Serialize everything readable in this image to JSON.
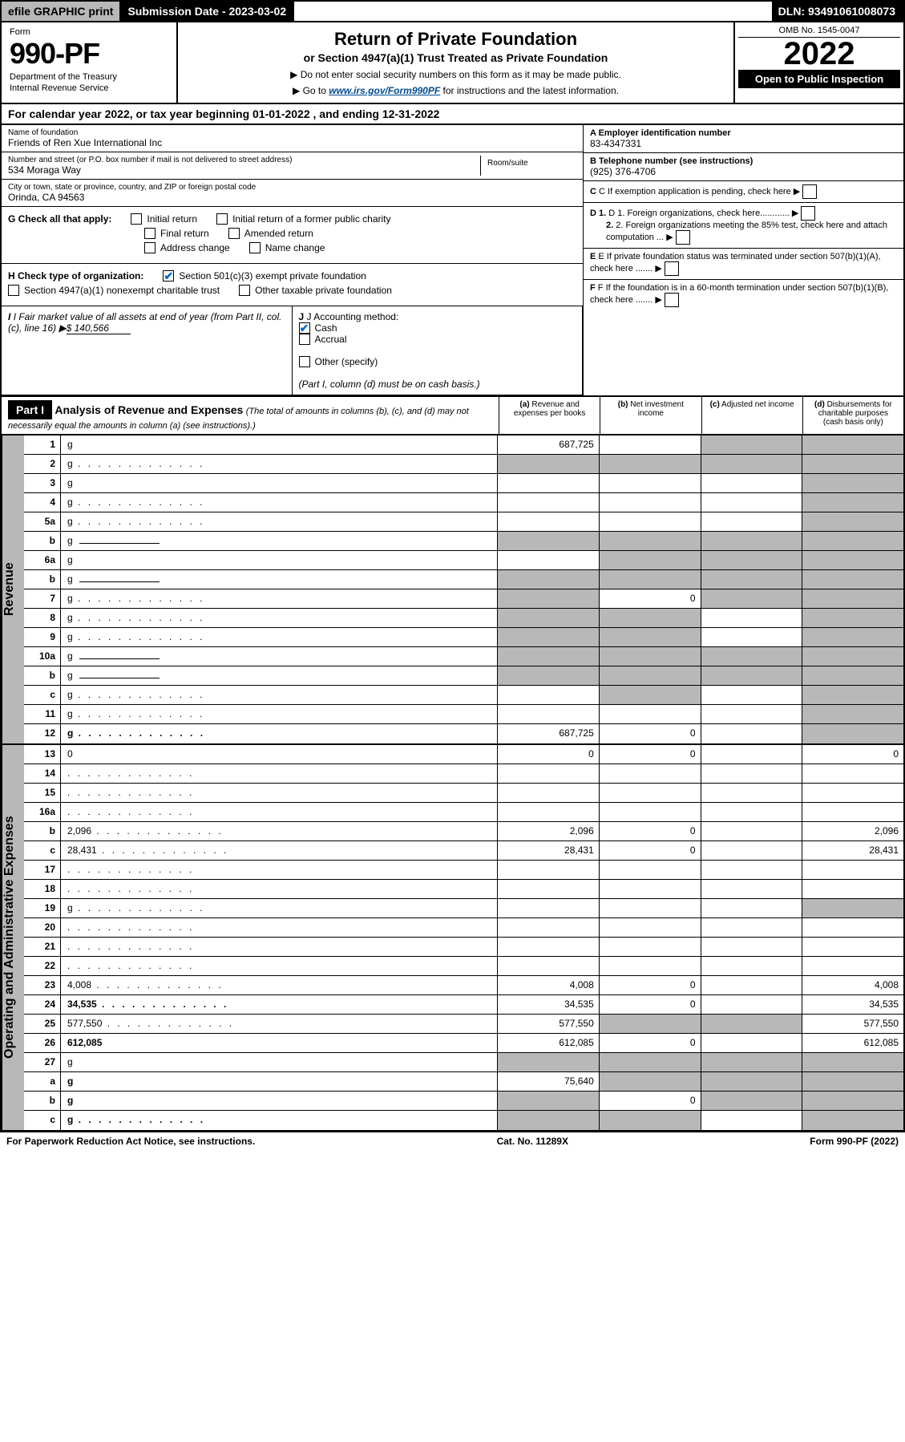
{
  "top": {
    "efile": "efile GRAPHIC print",
    "sub_label": "Submission Date - 2023-03-02",
    "dln": "DLN: 93491061008073"
  },
  "header": {
    "form_label": "Form",
    "form_number": "990-PF",
    "dept1": "Department of the Treasury",
    "dept2": "Internal Revenue Service",
    "title": "Return of Private Foundation",
    "subtitle": "or Section 4947(a)(1) Trust Treated as Private Foundation",
    "instr1": "▶ Do not enter social security numbers on this form as it may be made public.",
    "instr2_pre": "▶ Go to ",
    "instr2_link": "www.irs.gov/Form990PF",
    "instr2_post": " for instructions and the latest information.",
    "omb": "OMB No. 1545-0047",
    "year": "2022",
    "open": "Open to Public Inspection"
  },
  "cal_year": "For calendar year 2022, or tax year beginning 01-01-2022             , and ending 12-31-2022",
  "name": {
    "label": "Name of foundation",
    "value": "Friends of Ren Xue International Inc"
  },
  "addr": {
    "label": "Number and street (or P.O. box number if mail is not delivered to street address)",
    "value": "534 Moraga Way",
    "room_label": "Room/suite"
  },
  "city": {
    "label": "City or town, state or province, country, and ZIP or foreign postal code",
    "value": "Orinda, CA  94563"
  },
  "ein": {
    "label": "A Employer identification number",
    "value": "83-4347331"
  },
  "phone": {
    "label": "B Telephone number (see instructions)",
    "value": "(925) 376-4706"
  },
  "c": "C If exemption application is pending, check here",
  "d1": "D 1. Foreign organizations, check here............",
  "d2": "2. Foreign organizations meeting the 85% test, check here and attach computation ...",
  "e": "E  If private foundation status was terminated under section 507(b)(1)(A), check here .......",
  "f": "F  If the foundation is in a 60-month termination under section 507(b)(1)(B), check here .......",
  "g": {
    "label": "G Check all that apply:",
    "opts": [
      "Initial return",
      "Initial return of a former public charity",
      "Final return",
      "Amended return",
      "Address change",
      "Name change"
    ]
  },
  "h": {
    "label": "H Check type of organization:",
    "opt1": "Section 501(c)(3) exempt private foundation",
    "opt2": "Section 4947(a)(1) nonexempt charitable trust",
    "opt3": "Other taxable private foundation"
  },
  "i": {
    "label": "I Fair market value of all assets at end of year (from Part II, col. (c), line 16)",
    "value": "$  140,566"
  },
  "j": {
    "label": "J Accounting method:",
    "cash": "Cash",
    "accrual": "Accrual",
    "other": "Other (specify)",
    "note": "(Part I, column (d) must be on cash basis.)"
  },
  "part1": {
    "label": "Part I",
    "title": "Analysis of Revenue and Expenses",
    "note": "(The total of amounts in columns (b), (c), and (d) may not necessarily equal the amounts in column (a) (see instructions).)",
    "col_a": "(a)",
    "col_a_txt": "Revenue and expenses per books",
    "col_b": "(b)",
    "col_b_txt": "Net investment income",
    "col_c": "(c)",
    "col_c_txt": "Adjusted net income",
    "col_d": "(d)",
    "col_d_txt": "Disbursements for charitable purposes (cash basis only)"
  },
  "rev_label": "Revenue",
  "exp_label": "Operating and Administrative Expenses",
  "rows": [
    {
      "n": "1",
      "d": "g",
      "a": "687,725",
      "b": "",
      "c": "g"
    },
    {
      "n": "2",
      "d": "g",
      "a": "g",
      "b": "g",
      "c": "g",
      "dots": true
    },
    {
      "n": "3",
      "d": "g",
      "a": "",
      "b": "",
      "c": ""
    },
    {
      "n": "4",
      "d": "g",
      "a": "",
      "b": "",
      "c": "",
      "dots": true
    },
    {
      "n": "5a",
      "d": "g",
      "a": "",
      "b": "",
      "c": "",
      "dots": true
    },
    {
      "n": "b",
      "d": "g",
      "a": "g",
      "b": "g",
      "c": "g",
      "sub": true
    },
    {
      "n": "6a",
      "d": "g",
      "a": "",
      "b": "g",
      "c": "g"
    },
    {
      "n": "b",
      "d": "g",
      "a": "g",
      "b": "g",
      "c": "g",
      "sub": true
    },
    {
      "n": "7",
      "d": "g",
      "a": "g",
      "b": "0",
      "c": "g",
      "dots": true
    },
    {
      "n": "8",
      "d": "g",
      "a": "g",
      "b": "g",
      "c": "",
      "dots": true
    },
    {
      "n": "9",
      "d": "g",
      "a": "g",
      "b": "g",
      "c": "",
      "dots": true
    },
    {
      "n": "10a",
      "d": "g",
      "a": "g",
      "b": "g",
      "c": "g",
      "sub": true
    },
    {
      "n": "b",
      "d": "g",
      "a": "g",
      "b": "g",
      "c": "g",
      "sub": true,
      "dots": true
    },
    {
      "n": "c",
      "d": "g",
      "a": "",
      "b": "g",
      "c": "",
      "dots": true
    },
    {
      "n": "11",
      "d": "g",
      "a": "",
      "b": "",
      "c": "",
      "dots": true
    },
    {
      "n": "12",
      "d": "g",
      "a": "687,725",
      "b": "0",
      "c": "",
      "bold": true,
      "dots": true
    }
  ],
  "exp_rows": [
    {
      "n": "13",
      "d": "0",
      "a": "0",
      "b": "0",
      "c": ""
    },
    {
      "n": "14",
      "d": "",
      "a": "",
      "b": "",
      "c": "",
      "dots": true
    },
    {
      "n": "15",
      "d": "",
      "a": "",
      "b": "",
      "c": "",
      "dots": true
    },
    {
      "n": "16a",
      "d": "",
      "a": "",
      "b": "",
      "c": "",
      "dots": true
    },
    {
      "n": "b",
      "d": "2,096",
      "a": "2,096",
      "b": "0",
      "c": "",
      "dots": true
    },
    {
      "n": "c",
      "d": "28,431",
      "a": "28,431",
      "b": "0",
      "c": "",
      "dots": true
    },
    {
      "n": "17",
      "d": "",
      "a": "",
      "b": "",
      "c": "",
      "dots": true
    },
    {
      "n": "18",
      "d": "",
      "a": "",
      "b": "",
      "c": "",
      "dots": true
    },
    {
      "n": "19",
      "d": "g",
      "a": "",
      "b": "",
      "c": "",
      "dots": true
    },
    {
      "n": "20",
      "d": "",
      "a": "",
      "b": "",
      "c": "",
      "dots": true
    },
    {
      "n": "21",
      "d": "",
      "a": "",
      "b": "",
      "c": "",
      "dots": true
    },
    {
      "n": "22",
      "d": "",
      "a": "",
      "b": "",
      "c": "",
      "dots": true
    },
    {
      "n": "23",
      "d": "4,008",
      "a": "4,008",
      "b": "0",
      "c": "",
      "dots": true
    },
    {
      "n": "24",
      "d": "34,535",
      "a": "34,535",
      "b": "0",
      "c": "",
      "bold": true,
      "dots": true
    },
    {
      "n": "25",
      "d": "577,550",
      "a": "577,550",
      "b": "g",
      "c": "g",
      "dots": true
    },
    {
      "n": "26",
      "d": "612,085",
      "a": "612,085",
      "b": "0",
      "c": "",
      "bold": true
    },
    {
      "n": "27",
      "d": "g",
      "a": "g",
      "b": "g",
      "c": "g"
    },
    {
      "n": "a",
      "d": "g",
      "a": "75,640",
      "b": "g",
      "c": "g",
      "bold": true
    },
    {
      "n": "b",
      "d": "g",
      "a": "g",
      "b": "0",
      "c": "g",
      "bold": true
    },
    {
      "n": "c",
      "d": "g",
      "a": "g",
      "b": "g",
      "c": "",
      "bold": true,
      "dots": true
    }
  ],
  "footer": {
    "left": "For Paperwork Reduction Act Notice, see instructions.",
    "mid": "Cat. No. 11289X",
    "right": "Form 990-PF (2022)"
  }
}
